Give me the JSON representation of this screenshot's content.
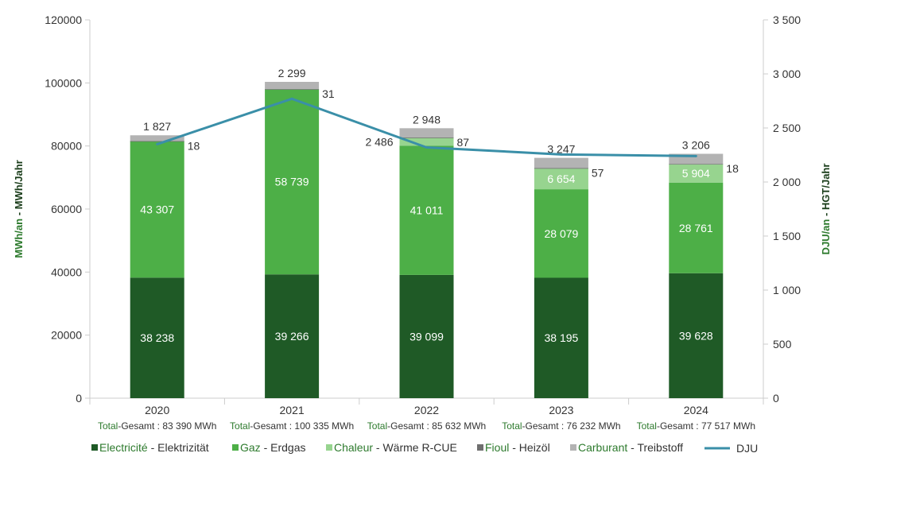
{
  "chart_data": {
    "type": "bar",
    "stacked": true,
    "categories": [
      "2020",
      "2021",
      "2022",
      "2023",
      "2024"
    ],
    "y_left": {
      "min": 0,
      "max": 120000,
      "ticks": [
        "0",
        "20000",
        "40000",
        "60000",
        "80000",
        "100000",
        "120000"
      ],
      "tick_values": [
        0,
        20000,
        40000,
        60000,
        80000,
        100000,
        120000
      ],
      "label_part1": "MWh/an",
      "label_part2": " - MWh/Jahr"
    },
    "y_right": {
      "min": 0,
      "max": 3500,
      "ticks": [
        "0",
        "500",
        "1 000",
        "1 500",
        "2 000",
        "2 500",
        "3 000",
        "3 500"
      ],
      "tick_values": [
        0,
        500,
        1000,
        1500,
        2000,
        2500,
        3000,
        3500
      ],
      "label_part1": "DJU/an",
      "label_part2": " - HGT/Jahr"
    },
    "series": [
      {
        "name": "Electricité - Elektrizität",
        "legend_fr": "Electricité",
        "legend_de": " - Elektrizität",
        "color": "#1f5a26",
        "values": [
          38238,
          39266,
          39099,
          38195,
          39628
        ],
        "labels": [
          "38 238",
          "39 266",
          "39 099",
          "38 195",
          "39 628"
        ]
      },
      {
        "name": "Gaz - Erdgas",
        "legend_fr": "Gaz",
        "legend_de": " - Erdgas",
        "color": "#4daf47",
        "values": [
          43307,
          58739,
          41011,
          28079,
          28761
        ],
        "labels": [
          "43 307",
          "58 739",
          "41 011",
          "28 079",
          "28 761"
        ]
      },
      {
        "name": "Chaleur - Wärme R-CUE",
        "legend_fr": "Chaleur",
        "legend_de": " - Wärme R-CUE",
        "color": "#97d48f",
        "values": [
          0,
          0,
          2486,
          6654,
          5904
        ],
        "labels": [
          "",
          "",
          "2 486",
          "6 654",
          "5 904"
        ]
      },
      {
        "name": "Fioul - Heizöl",
        "legend_fr": "Fioul",
        "legend_de": " - Heizöl",
        "color": "#6f6f6f",
        "values": [
          18,
          31,
          87,
          57,
          18
        ],
        "labels": [
          "18",
          "31",
          "87",
          "57",
          "18"
        ]
      },
      {
        "name": "Carburant - Treibstoff",
        "legend_fr": "Carburant",
        "legend_de": " - Treibstoff",
        "color": "#b3b3b3",
        "values": [
          1827,
          2299,
          2948,
          3247,
          3206
        ],
        "labels": [
          "1 827",
          "2 299",
          "2 948",
          "3 247",
          "3 206"
        ]
      }
    ],
    "line_series": {
      "name": "DJU",
      "color": "#3a8fa8",
      "axis": "right",
      "values": [
        2350,
        2770,
        2320,
        2255,
        2240
      ]
    },
    "totals": {
      "prefix_fr": "Total",
      "prefix_de": "-Gesamt : ",
      "values": [
        "83 390 MWh",
        "100 335 MWh",
        "85 632 MWh",
        "76 232 MWh",
        "77 517 MWh"
      ]
    },
    "legend_position": "bottom"
  }
}
